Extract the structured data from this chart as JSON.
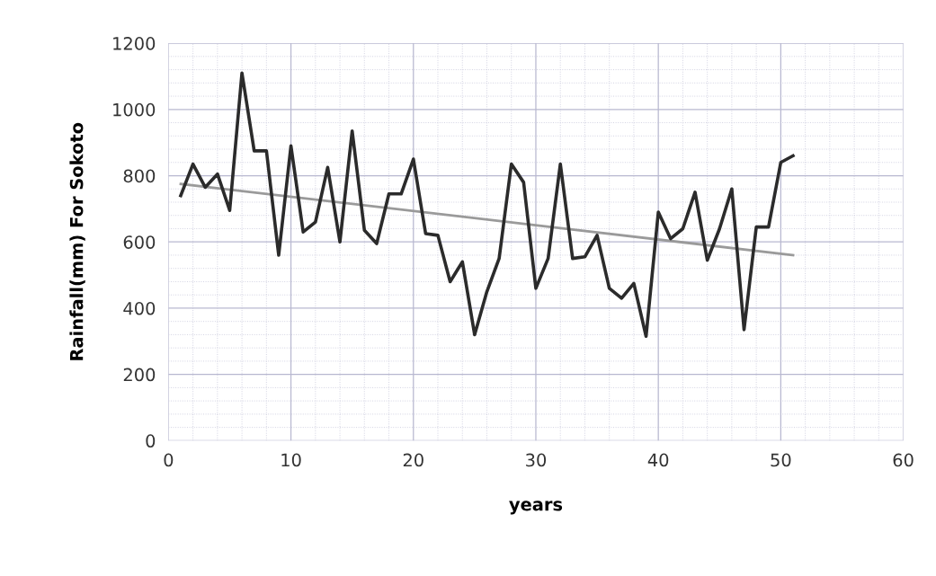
{
  "chart_data": {
    "type": "line",
    "xlabel": "years",
    "ylabel": "Rainfall(mm) For Sokoto",
    "x": [
      1,
      2,
      3,
      4,
      5,
      6,
      7,
      8,
      9,
      10,
      11,
      12,
      13,
      14,
      15,
      16,
      17,
      18,
      19,
      20,
      21,
      22,
      23,
      24,
      25,
      26,
      27,
      28,
      29,
      30,
      31,
      32,
      33,
      34,
      35,
      36,
      37,
      38,
      39,
      40,
      41,
      42,
      43,
      44,
      45,
      46,
      47,
      48,
      49,
      50,
      51
    ],
    "series": [
      {
        "color": "#2b2b2b",
        "values": [
          740,
          835,
          765,
          805,
          695,
          1110,
          875,
          875,
          560,
          890,
          630,
          660,
          825,
          600,
          935,
          635,
          595,
          745,
          745,
          850,
          625,
          620,
          480,
          540,
          320,
          450,
          550,
          835,
          780,
          460,
          550,
          835,
          550,
          555,
          620,
          460,
          430,
          475,
          315,
          690,
          610,
          640,
          750,
          545,
          640,
          760,
          335,
          645,
          645,
          840,
          860
        ]
      },
      {
        "type": "line",
        "color": "#9a9a9a",
        "x": [
          1,
          51
        ],
        "values": [
          775,
          560
        ]
      }
    ],
    "xlim": [
      0,
      60
    ],
    "xticks": [
      0,
      10,
      20,
      30,
      40,
      50,
      60
    ],
    "ylim": [
      0,
      1200
    ],
    "yticks": [
      0,
      200,
      400,
      600,
      800,
      1000,
      1200
    ],
    "grid": true,
    "marker": "none",
    "line_style": "solid"
  }
}
